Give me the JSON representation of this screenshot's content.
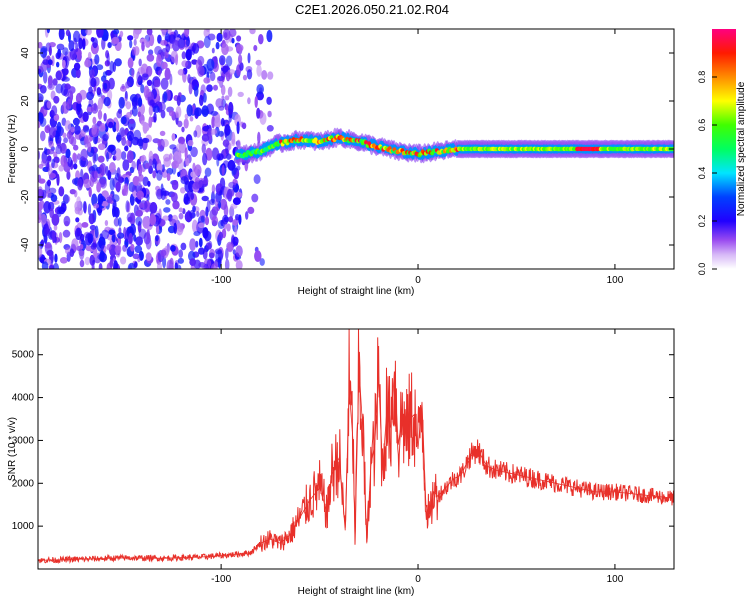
{
  "title": "C2E1.2026.050.21.02.R04",
  "chart_data": [
    {
      "type": "heatmap",
      "name": "spectrogram",
      "xlabel": "Height of straight line (km)",
      "ylabel": "Frequency (Hz)",
      "xlim": [
        -193,
        130
      ],
      "ylim": [
        -50,
        50
      ],
      "x_ticks": [
        -100,
        0,
        100
      ],
      "x_tick_labels": [
        "-100",
        "0",
        "100"
      ],
      "y_ticks": [
        -40,
        -20,
        0,
        20,
        40
      ],
      "y_tick_labels": [
        "-40",
        "-20",
        "0",
        "20",
        "40"
      ],
      "colorbar": {
        "label": "Normalized spectral amplitude",
        "range": [
          0,
          1
        ],
        "ticks": [
          0,
          0.2,
          0.4,
          0.6,
          0.8
        ],
        "tick_labels": [
          "0.0",
          "0.2",
          "0.4",
          "0.6",
          "0.8"
        ],
        "colormap": [
          "#ffffff",
          "#c9a4f5",
          "#8a2be2",
          "#3a00ff",
          "#0000ff",
          "#00ffff",
          "#00ff00",
          "#ffff00",
          "#ff8000",
          "#ff0000",
          "#ff0080"
        ]
      },
      "regions": {
        "noise_x_range": [
          -193,
          -75
        ],
        "noise_level": 0.2,
        "signal_start_km": -92,
        "trace_knots_km": [
          -92,
          -80,
          -72,
          -60,
          -50,
          -40,
          -30,
          -20,
          -10,
          0,
          10,
          20,
          130
        ],
        "trace_freq_hz": [
          -3,
          -1,
          2,
          4,
          3,
          5,
          3,
          1,
          -1,
          -2,
          -1,
          0,
          0
        ],
        "trace_peak_amplitude": 0.95
      }
    },
    {
      "type": "line",
      "name": "snr",
      "xlabel": "Height of straight line (km)",
      "ylabel": "SNR (10 * v/v)",
      "xlim": [
        -193,
        130
      ],
      "ylim": [
        0,
        5600
      ],
      "x_ticks": [
        -100,
        0,
        100
      ],
      "x_tick_labels": [
        "-100",
        "0",
        "100"
      ],
      "y_ticks": [
        1000,
        2000,
        3000,
        4000,
        5000
      ],
      "y_tick_labels": [
        "1000",
        "2000",
        "3000",
        "4000",
        "5000"
      ],
      "series": [
        {
          "name": "SNR",
          "color": "#e8302a",
          "x": [
            -193,
            -170,
            -150,
            -130,
            -110,
            -95,
            -85,
            -80,
            -75,
            -70,
            -65,
            -60,
            -55,
            -50,
            -46,
            -44,
            -40,
            -37,
            -35,
            -33,
            -32,
            -30,
            -28,
            -26,
            -24,
            -22,
            -20,
            -18,
            -16,
            -14,
            -12,
            -10,
            -8,
            -6,
            -4,
            -2,
            0,
            2,
            4,
            6,
            8,
            10,
            14,
            18,
            22,
            26,
            30,
            35,
            40,
            50,
            60,
            70,
            80,
            90,
            100,
            110,
            120,
            130
          ],
          "y": [
            200,
            230,
            260,
            250,
            280,
            330,
            380,
            600,
            700,
            600,
            800,
            1200,
            1600,
            1900,
            1300,
            2200,
            2600,
            900,
            4200,
            3000,
            700,
            4700,
            3200,
            600,
            2400,
            2900,
            4500,
            2300,
            3600,
            3300,
            4600,
            2900,
            3600,
            3100,
            3500,
            3600,
            2800,
            3900,
            1500,
            1200,
            1800,
            1700,
            1900,
            2100,
            2200,
            2600,
            2800,
            2400,
            2300,
            2200,
            2100,
            2000,
            1900,
            1800,
            1800,
            1750,
            1700,
            1650
          ]
        }
      ]
    }
  ]
}
